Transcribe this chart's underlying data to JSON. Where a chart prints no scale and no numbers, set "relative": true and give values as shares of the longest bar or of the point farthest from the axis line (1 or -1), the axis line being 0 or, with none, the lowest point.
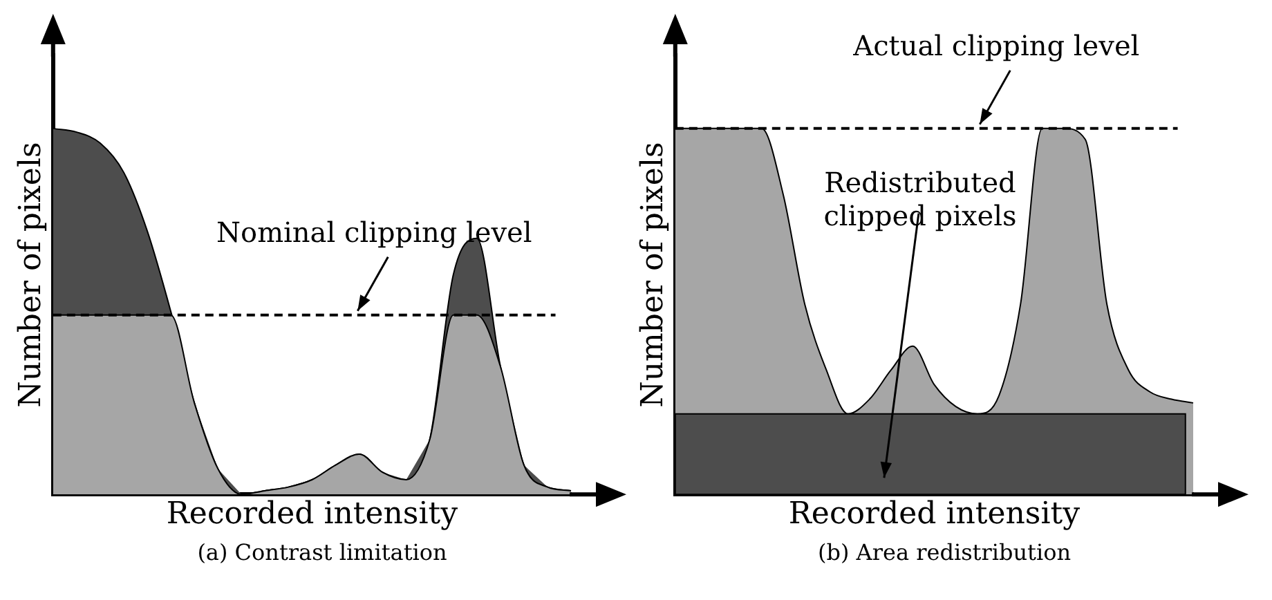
{
  "chart_data": [
    {
      "type": "area",
      "title": "(a) Contrast limitation",
      "xlabel": "Recorded intensity",
      "ylabel": "Number of pixels",
      "categories": [
        null,
        null,
        null,
        null,
        null,
        null,
        null,
        null,
        null,
        null,
        null,
        null,
        null,
        null,
        null,
        null,
        null,
        null,
        null,
        null,
        null,
        null,
        null
      ],
      "stacked": true,
      "relative": true,
      "series": [
        {
          "color": "#a6a6a6",
          "values": [
            0.49,
            0.49,
            0.49,
            0.49,
            0.49,
            0.49,
            0.25,
            0.07,
            0,
            0.01,
            0.02,
            0.04,
            0.08,
            0.11,
            0.06,
            0.04,
            0.15,
            0.49,
            0.49,
            0.35,
            0.08,
            0.02,
            0.01
          ]
        },
        {
          "color": "#4d4d4d",
          "values": [
            0.51,
            0.5,
            0.47,
            0.39,
            0.23,
            0.01,
            0,
            0,
            0,
            0,
            0,
            0,
            0,
            0,
            0,
            0,
            0,
            0.11,
            0.21,
            0,
            0,
            0,
            0
          ]
        }
      ],
      "ref_lines": [
        {
          "axis": "y",
          "value": 0.49,
          "label": "Nominal clipping level",
          "line_style": "dashed",
          "color": "#000000"
        }
      ],
      "legend": false,
      "grid": false,
      "tick_labels": false
    },
    {
      "type": "area",
      "title": "(b) Area redistribution",
      "xlabel": "Recorded intensity",
      "ylabel": "Number of pixels",
      "categories": [
        null,
        null,
        null,
        null,
        null,
        null,
        null,
        null,
        null,
        null,
        null,
        null,
        null,
        null,
        null,
        null,
        null,
        null,
        null,
        null,
        null,
        null,
        null,
        null,
        null
      ],
      "relative": true,
      "series": [
        {
          "color": "#a6a6a6",
          "values": [
            1.0,
            1.0,
            1.0,
            1.0,
            1.0,
            0.82,
            0.52,
            0.34,
            0.22,
            0.26,
            0.34,
            0.405,
            0.3,
            0.24,
            0.22,
            0.27,
            0.52,
            1.0,
            1.0,
            0.97,
            0.52,
            0.34,
            0.28,
            0.26,
            0.25
          ]
        }
      ],
      "bands": [
        {
          "axis": "y",
          "from": 0,
          "to": 0.22,
          "color": "#4d4d4d"
        }
      ],
      "ref_lines": [
        {
          "axis": "y",
          "value": 1.0,
          "label": "Actual clipping level",
          "line_style": "dashed",
          "color": "#000000"
        }
      ],
      "annotations": [
        "Redistributed clipped pixels"
      ],
      "legend": false,
      "grid": false,
      "tick_labels": false
    }
  ]
}
